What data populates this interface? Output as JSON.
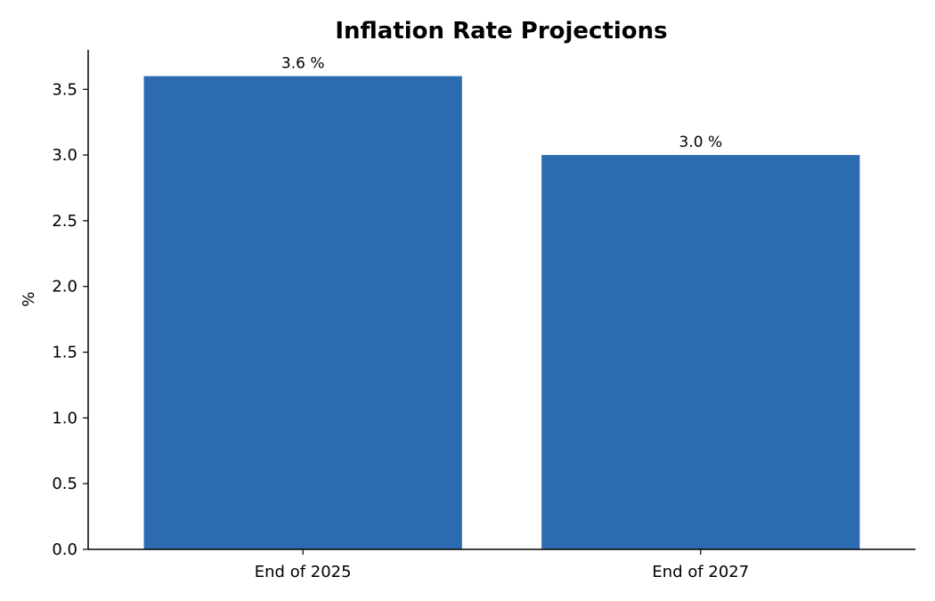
{
  "chart_data": {
    "type": "bar",
    "title": "Inflation Rate Projections",
    "xlabel": "",
    "ylabel": "%",
    "categories": [
      "End of 2025",
      "End of 2027"
    ],
    "values": [
      3.6,
      3.0
    ],
    "data_labels": [
      "3.6 %",
      "3.0 %"
    ],
    "ylim": [
      0,
      3.8
    ],
    "yticks": [
      0.0,
      0.5,
      1.0,
      1.5,
      2.0,
      2.5,
      3.0,
      3.5
    ],
    "ytick_labels": [
      "0.0",
      "0.5",
      "1.0",
      "1.5",
      "2.0",
      "2.5",
      "3.0",
      "3.5"
    ],
    "bar_color": "#2c6bb0",
    "grid": false,
    "legend": "none"
  }
}
